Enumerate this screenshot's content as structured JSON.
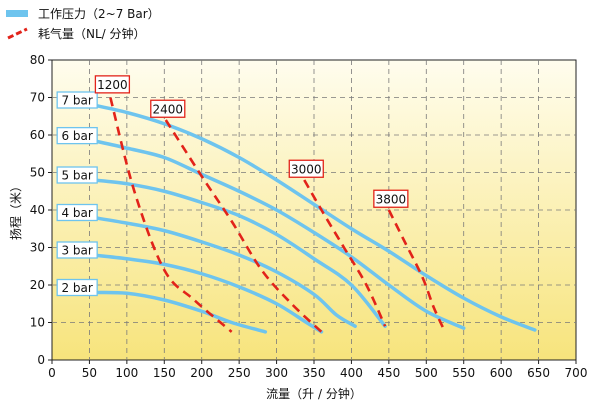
{
  "chart_data": {
    "type": "line",
    "legend": {
      "placement": "top-left",
      "items": [
        {
          "label": "工作压力（2~7 Bar）",
          "color": "#6ec4ee",
          "style": "solid"
        },
        {
          "label": "耗气量（NL/ 分钟）",
          "color": "#e2231a",
          "style": "dashed"
        }
      ]
    },
    "xlabel": "流量（升 / 分钟）",
    "ylabel": "扬程（米）",
    "xlim": [
      0,
      700
    ],
    "ylim": [
      0,
      80
    ],
    "xticks": [
      0,
      50,
      100,
      150,
      200,
      250,
      300,
      350,
      400,
      450,
      500,
      550,
      600,
      650,
      700
    ],
    "yticks": [
      0,
      10,
      20,
      30,
      40,
      50,
      60,
      70,
      80
    ],
    "grid": true,
    "pressure_series": [
      {
        "name": "2 bar",
        "points": [
          [
            55,
            18
          ],
          [
            100,
            17.8
          ],
          [
            150,
            16
          ],
          [
            200,
            13
          ],
          [
            240,
            10
          ],
          [
            285,
            7.5
          ]
        ]
      },
      {
        "name": "3 bar",
        "points": [
          [
            55,
            28
          ],
          [
            100,
            27
          ],
          [
            150,
            25.5
          ],
          [
            200,
            23
          ],
          [
            250,
            19.5
          ],
          [
            300,
            15
          ],
          [
            340,
            10
          ],
          [
            360,
            7.5
          ]
        ]
      },
      {
        "name": "4 bar",
        "points": [
          [
            55,
            38
          ],
          [
            100,
            36.5
          ],
          [
            150,
            34.5
          ],
          [
            200,
            31.5
          ],
          [
            250,
            28
          ],
          [
            300,
            23.5
          ],
          [
            350,
            17.5
          ],
          [
            380,
            12
          ],
          [
            405,
            9
          ]
        ]
      },
      {
        "name": "5 bar",
        "points": [
          [
            55,
            48
          ],
          [
            100,
            47
          ],
          [
            150,
            45
          ],
          [
            200,
            42
          ],
          [
            250,
            38.5
          ],
          [
            300,
            33.5
          ],
          [
            350,
            27
          ],
          [
            400,
            20
          ],
          [
            445,
            9
          ]
        ]
      },
      {
        "name": "6 bar",
        "points": [
          [
            55,
            58.5
          ],
          [
            100,
            56.5
          ],
          [
            150,
            54
          ],
          [
            200,
            49.5
          ],
          [
            250,
            45
          ],
          [
            300,
            40
          ],
          [
            350,
            34
          ],
          [
            400,
            27.5
          ],
          [
            450,
            20
          ],
          [
            500,
            13
          ],
          [
            550,
            8.5
          ]
        ]
      },
      {
        "name": "7 bar",
        "points": [
          [
            55,
            68
          ],
          [
            100,
            66
          ],
          [
            150,
            63
          ],
          [
            200,
            59
          ],
          [
            250,
            54
          ],
          [
            300,
            48
          ],
          [
            350,
            41.5
          ],
          [
            400,
            35
          ],
          [
            450,
            29
          ],
          [
            500,
            22.5
          ],
          [
            550,
            16.5
          ],
          [
            600,
            11.5
          ],
          [
            645,
            8
          ]
        ]
      }
    ],
    "consumption_series": [
      {
        "name": "1200",
        "label_at": [
          78,
          73.5
        ],
        "points": [
          [
            78,
            70
          ],
          [
            110,
            45
          ],
          [
            150,
            24
          ],
          [
            190,
            16
          ],
          [
            240,
            7.5
          ]
        ]
      },
      {
        "name": "2400",
        "label_at": [
          152,
          67
        ],
        "points": [
          [
            152,
            64
          ],
          [
            200,
            49
          ],
          [
            240,
            37
          ],
          [
            280,
            24
          ],
          [
            320,
            15
          ],
          [
            360,
            7.5
          ]
        ]
      },
      {
        "name": "3000",
        "label_at": [
          337,
          51
        ],
        "points": [
          [
            337,
            48
          ],
          [
            360,
            40
          ],
          [
            390,
            30
          ],
          [
            420,
            20
          ],
          [
            445,
            9
          ]
        ]
      },
      {
        "name": "3800",
        "label_at": [
          450,
          43
        ],
        "points": [
          [
            450,
            40
          ],
          [
            470,
            32
          ],
          [
            495,
            22
          ],
          [
            510,
            14
          ],
          [
            525,
            7.5
          ]
        ]
      }
    ]
  }
}
